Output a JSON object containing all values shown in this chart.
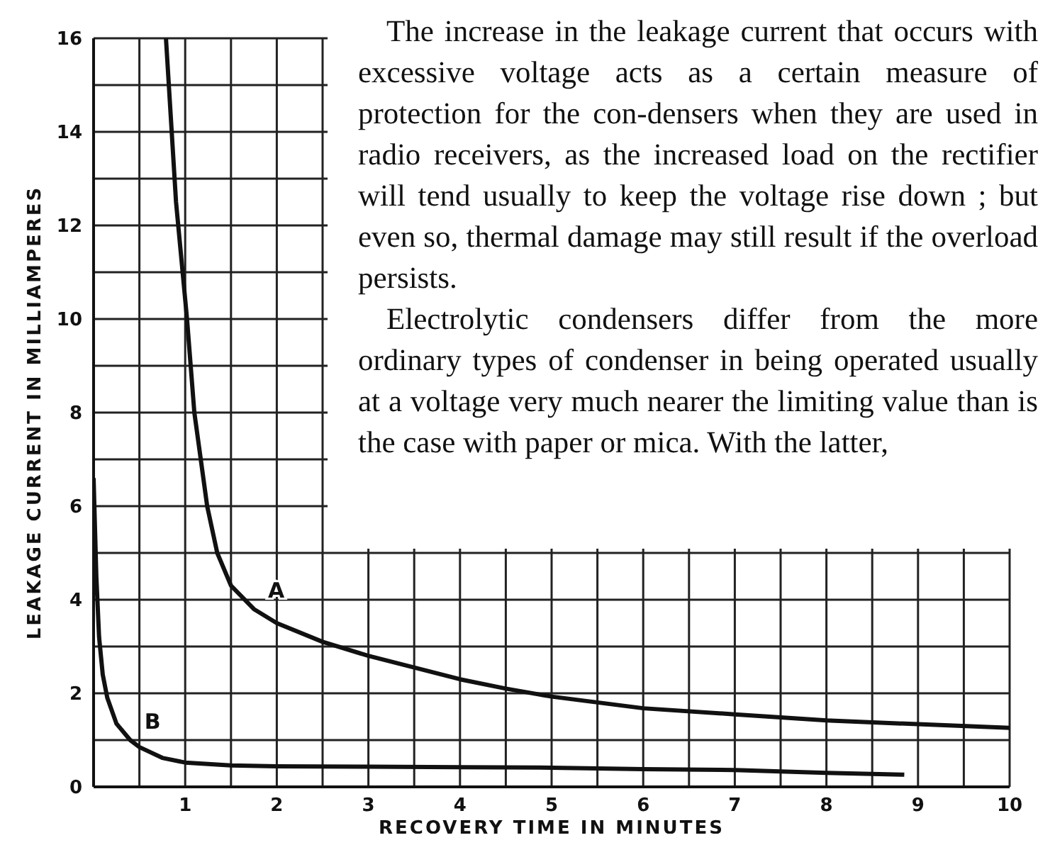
{
  "chart_data": {
    "type": "line",
    "xlabel": "RECOVERY TIME IN MINUTES",
    "ylabel": "LEAKAGE CURRENT IN MILLIAMPERES",
    "xlim": [
      0,
      10
    ],
    "ylim": [
      0,
      16
    ],
    "xticks": [
      {
        "value": 0.5,
        "label": null
      },
      1,
      {
        "value": 1.5,
        "label": null
      },
      2,
      {
        "value": 2.5,
        "label": null
      },
      3,
      {
        "value": 3.5,
        "label": null
      },
      4,
      {
        "value": 4.5,
        "label": null
      },
      5,
      {
        "value": 5.5,
        "label": null
      },
      6,
      {
        "value": 6.5,
        "label": null
      },
      7,
      {
        "value": 7.5,
        "label": null
      },
      8,
      {
        "value": 8.5,
        "label": null
      },
      9,
      {
        "value": 9.5,
        "label": null
      },
      10
    ],
    "yticks": [
      0,
      {
        "value": 1,
        "label": null
      },
      2,
      {
        "value": 3,
        "label": null
      },
      4,
      {
        "value": 5,
        "label": null
      },
      6,
      {
        "value": 7,
        "label": null
      },
      8,
      {
        "value": 9,
        "label": null
      },
      10,
      {
        "value": 11,
        "label": null
      },
      12,
      {
        "value": 13,
        "label": null
      },
      14,
      {
        "value": 15,
        "label": null
      },
      16
    ],
    "grid": true,
    "marker": "none",
    "line_style": "solid",
    "series": [
      {
        "name": "A",
        "color": "#111111",
        "x": [
          0.79,
          0.9,
          1.02,
          1.1,
          1.24,
          1.35,
          1.5,
          1.75,
          2,
          2.5,
          3,
          3.5,
          4,
          4.5,
          5,
          6,
          7,
          8,
          9,
          10
        ],
        "values": [
          16,
          12.5,
          10,
          8,
          6,
          5,
          4.3,
          3.8,
          3.5,
          3.1,
          2.8,
          2.55,
          2.3,
          2.1,
          1.93,
          1.68,
          1.55,
          1.42,
          1.34,
          1.26
        ]
      },
      {
        "name": "B",
        "color": "#111111",
        "x": [
          0,
          0.03,
          0.06,
          0.1,
          0.15,
          0.25,
          0.4,
          0.5,
          0.75,
          1,
          1.5,
          2,
          3,
          4,
          5,
          6,
          7,
          8,
          8.85
        ],
        "values": [
          6.6,
          4.5,
          3.2,
          2.4,
          1.9,
          1.35,
          1,
          0.85,
          0.62,
          0.52,
          0.46,
          0.44,
          0.43,
          0.42,
          0.41,
          0.38,
          0.36,
          0.3,
          0.26
        ]
      }
    ],
    "annotations": [
      "The increase in the leakage current that occurs with excessive voltage acts as a certain measure of protection for the con-densers when they are used in radio receivers, as the increased load on the rectifier will tend usually to keep the voltage rise down ; but even so, thermal damage may still result if the overload persists.",
      "Electrolytic condensers differ from the more ordinary types of condenser in being operated usually at a voltage very much nearer the limiting value than is the case with paper or mica. With the latter,"
    ]
  }
}
